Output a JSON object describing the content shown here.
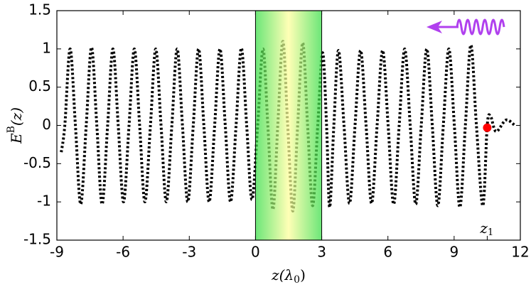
{
  "chart_data": {
    "type": "line",
    "xlabel": [
      "z(",
      "λ",
      "0",
      ")"
    ],
    "ylabel": [
      "E",
      "B",
      "(z)"
    ],
    "xlim": [
      -9,
      12
    ],
    "ylim": [
      -1.5,
      1.5
    ],
    "xticks": [
      -9,
      -6,
      -3,
      0,
      3,
      6,
      9,
      12
    ],
    "yticks": [
      -1.5,
      -1,
      -0.5,
      0,
      0.5,
      1,
      1.5
    ],
    "shaded_region": [
      0,
      3
    ],
    "series": [
      {
        "color": "#000000",
        "x": [
          -8.8,
          -8.64,
          -8.4,
          -8.16,
          -7.92,
          -7.67,
          -7.43,
          -7.19,
          -6.95,
          -6.7,
          -6.46,
          -6.22,
          -5.98,
          -5.73,
          -5.49,
          -5.25,
          -5.01,
          -4.76,
          -4.52,
          -4.28,
          -4.04,
          -3.79,
          -3.55,
          -3.31,
          -3.07,
          -2.82,
          -2.58,
          -2.34,
          -2.1,
          -1.85,
          -1.61,
          -1.37,
          -1.13,
          -0.88,
          -0.64,
          -0.4,
          -0.16,
          0.1,
          0.34,
          0.56,
          0.79,
          1.01,
          1.24,
          1.46,
          1.69,
          1.91,
          2.14,
          2.36,
          2.59,
          2.82,
          3.04,
          3.22,
          3.36,
          3.55,
          3.76,
          4.01,
          4.26,
          4.51,
          4.76,
          5.01,
          5.26,
          5.51,
          5.76,
          6.01,
          6.26,
          6.51,
          6.76,
          7.01,
          7.26,
          7.51,
          7.76,
          8.01,
          8.26,
          8.51,
          8.76,
          9.01,
          9.26,
          9.51,
          9.76,
          10.01,
          10.3,
          10.5,
          10.65,
          10.9,
          11.35,
          11.75
        ],
        "values": [
          -0.35,
          0,
          1.0,
          0,
          -1.03,
          0,
          1.02,
          0,
          -1.03,
          0,
          1.0,
          0,
          -1.0,
          0,
          1.0,
          0,
          -1.0,
          0,
          1.0,
          0,
          -1.0,
          0,
          1.0,
          0,
          -1.0,
          0,
          1.0,
          0,
          -1.0,
          0,
          1.0,
          0,
          -1.0,
          0,
          1.01,
          0,
          -0.97,
          0,
          1.0,
          0,
          -1.1,
          0,
          1.1,
          0,
          -1.12,
          0,
          1.08,
          0,
          -1.05,
          0,
          0.95,
          0,
          -1.07,
          0,
          0.98,
          0,
          -1.02,
          0,
          0.98,
          0,
          -1.02,
          0,
          0.98,
          0,
          -1.03,
          0,
          1.0,
          0,
          -1.03,
          0,
          1.0,
          0,
          -1.05,
          0,
          1.0,
          0,
          -1.07,
          0,
          1.05,
          0,
          -1.05,
          0,
          0.12,
          -0.08,
          0.07,
          0.0
        ]
      }
    ],
    "marker": {
      "x": 10.5,
      "y": -0.03,
      "color": "#ff0000",
      "label": [
        "z",
        "1"
      ]
    }
  }
}
